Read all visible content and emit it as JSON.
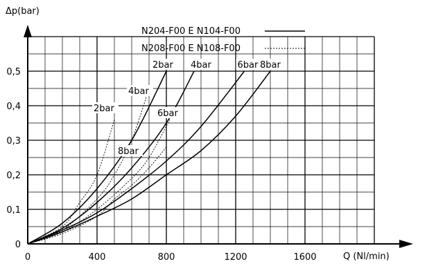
{
  "chart_data": {
    "type": "line",
    "title": "",
    "ylabel": "Δp(bar)",
    "xlabel": "Q (Nl/min)",
    "xlim": [
      0,
      2000
    ],
    "ylim": [
      0,
      0.6
    ],
    "x_ticks": [
      "0",
      "400",
      "800",
      "1200",
      "1600"
    ],
    "y_ticks": [
      "0",
      "0,1",
      "0,2",
      "0,3",
      "0,4",
      "0,5"
    ],
    "grid": true,
    "legend_position": "top-right",
    "legend": [
      {
        "label": "N204-F00 E N104-F00",
        "style": "solid"
      },
      {
        "label": "N208-F00 E N108-F00",
        "style": "dotted"
      }
    ],
    "series": [
      {
        "name": "2bar",
        "style": "solid",
        "label": "2bar",
        "points": [
          [
            0,
            0
          ],
          [
            200,
            0.06
          ],
          [
            400,
            0.16
          ],
          [
            600,
            0.3
          ],
          [
            800,
            0.5
          ]
        ]
      },
      {
        "name": "4bar",
        "style": "solid",
        "label": "4bar",
        "points": [
          [
            0,
            0
          ],
          [
            200,
            0.045
          ],
          [
            400,
            0.12
          ],
          [
            600,
            0.22
          ],
          [
            800,
            0.35
          ],
          [
            960,
            0.5
          ]
        ]
      },
      {
        "name": "6bar",
        "style": "solid",
        "label": "6bar",
        "points": [
          [
            0,
            0
          ],
          [
            200,
            0.04
          ],
          [
            400,
            0.09
          ],
          [
            600,
            0.16
          ],
          [
            800,
            0.24
          ],
          [
            1000,
            0.34
          ],
          [
            1250,
            0.5
          ]
        ]
      },
      {
        "name": "8bar",
        "style": "solid",
        "label": "8bar",
        "points": [
          [
            0,
            0
          ],
          [
            200,
            0.035
          ],
          [
            400,
            0.08
          ],
          [
            600,
            0.13
          ],
          [
            800,
            0.2
          ],
          [
            1000,
            0.27
          ],
          [
            1200,
            0.37
          ],
          [
            1400,
            0.5
          ]
        ]
      },
      {
        "name": "2bar",
        "style": "dotted",
        "label": "2bar",
        "points": [
          [
            0,
            0
          ],
          [
            200,
            0.05
          ],
          [
            300,
            0.12
          ],
          [
            400,
            0.2
          ],
          [
            500,
            0.36
          ]
        ]
      },
      {
        "name": "4bar",
        "style": "dotted",
        "label": "4bar",
        "points": [
          [
            0,
            0
          ],
          [
            200,
            0.04
          ],
          [
            400,
            0.13
          ],
          [
            500,
            0.2
          ],
          [
            600,
            0.3
          ],
          [
            700,
            0.45
          ]
        ]
      },
      {
        "name": "6bar",
        "style": "dotted",
        "label": "6bar",
        "points": [
          [
            0,
            0
          ],
          [
            200,
            0.035
          ],
          [
            400,
            0.1
          ],
          [
            600,
            0.19
          ],
          [
            700,
            0.25
          ],
          [
            820,
            0.36
          ]
        ]
      },
      {
        "name": "8bar",
        "style": "dotted",
        "label": "8bar",
        "points": [
          [
            0,
            0
          ],
          [
            200,
            0.03
          ],
          [
            400,
            0.08
          ],
          [
            500,
            0.13
          ],
          [
            600,
            0.17
          ],
          [
            700,
            0.22
          ],
          [
            800,
            0.28
          ]
        ]
      }
    ]
  }
}
